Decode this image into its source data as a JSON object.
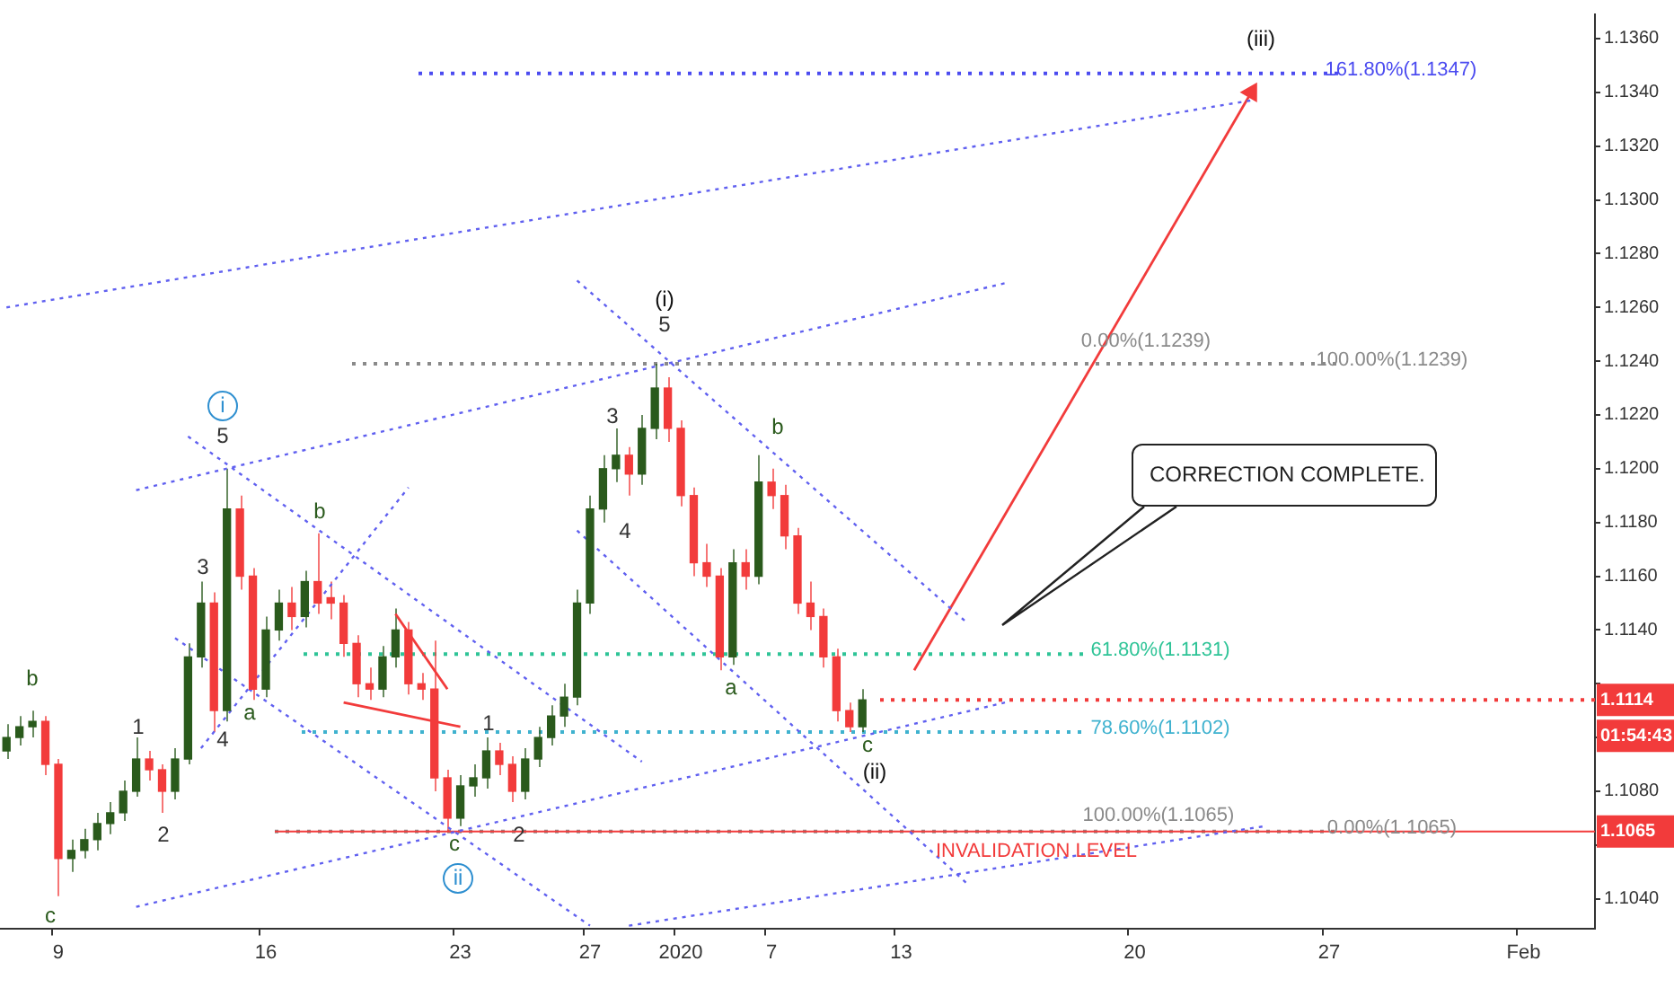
{
  "chart_data": {
    "type": "candlestick",
    "title": "CORRECTION COMPLETE.",
    "categories": [
      null,
      null,
      null,
      null,
      "9",
      null,
      null,
      null,
      null,
      null,
      null,
      null,
      null,
      null,
      null,
      null,
      null,
      null,
      null,
      null,
      "16",
      null,
      null,
      null,
      null,
      null,
      null,
      null,
      null,
      null,
      null,
      null,
      null,
      null,
      null,
      "23",
      null,
      null,
      null,
      null,
      null,
      null,
      null,
      null,
      null,
      "27",
      null,
      null,
      null,
      null,
      null,
      null,
      "2020",
      null,
      null,
      null,
      null,
      null,
      null,
      "7",
      null,
      null,
      null,
      null,
      null,
      null,
      null,
      null,
      null,
      "13",
      null,
      null,
      null,
      null,
      null,
      null,
      null,
      null,
      null,
      null,
      null,
      null,
      null,
      null,
      null,
      null,
      null,
      "20",
      null,
      null,
      null,
      null,
      null,
      null,
      null,
      null,
      null,
      null,
      null,
      null,
      null,
      null,
      "27",
      null,
      null,
      null,
      null,
      null,
      null,
      null,
      null,
      null,
      null,
      null,
      null,
      null,
      null,
      "Feb",
      null,
      null,
      null,
      null,
      null
    ],
    "ohlc": [
      [
        1.1095,
        1.1105,
        1.1092,
        1.11
      ],
      [
        1.11,
        1.1108,
        1.1097,
        1.1104
      ],
      [
        1.1104,
        1.111,
        1.11,
        1.1106
      ],
      [
        1.1106,
        1.1108,
        1.1086,
        1.109
      ],
      [
        1.109,
        1.1092,
        1.1041,
        1.1055
      ],
      [
        1.1055,
        1.1062,
        1.105,
        1.1058
      ],
      [
        1.1058,
        1.1066,
        1.1055,
        1.1062
      ],
      [
        1.1062,
        1.1072,
        1.1058,
        1.1068
      ],
      [
        1.1068,
        1.1076,
        1.1064,
        1.1072
      ],
      [
        1.1072,
        1.1084,
        1.1069,
        1.108
      ],
      [
        1.108,
        1.11,
        1.1078,
        1.1092
      ],
      [
        1.1092,
        1.1095,
        1.1084,
        1.1088
      ],
      [
        1.1088,
        1.109,
        1.1072,
        1.108
      ],
      [
        1.108,
        1.1096,
        1.1077,
        1.1092
      ],
      [
        1.1092,
        1.1135,
        1.109,
        1.113
      ],
      [
        1.113,
        1.1158,
        1.1126,
        1.115
      ],
      [
        1.115,
        1.1154,
        1.1102,
        1.111
      ],
      [
        1.111,
        1.12,
        1.1106,
        1.1185
      ],
      [
        1.1185,
        1.119,
        1.1155,
        1.116
      ],
      [
        1.116,
        1.1163,
        1.1114,
        1.1118
      ],
      [
        1.1118,
        1.1145,
        1.1115,
        1.114
      ],
      [
        1.114,
        1.1155,
        1.1136,
        1.115
      ],
      [
        1.115,
        1.1156,
        1.114,
        1.1145
      ],
      [
        1.1145,
        1.1162,
        1.1141,
        1.1158
      ],
      [
        1.1158,
        1.1176,
        1.1146,
        1.115
      ],
      [
        1.1152,
        1.1158,
        1.1144,
        1.115
      ],
      [
        1.115,
        1.1153,
        1.113,
        1.1135
      ],
      [
        1.1135,
        1.1138,
        1.1115,
        1.112
      ],
      [
        1.112,
        1.1126,
        1.1114,
        1.1118
      ],
      [
        1.1118,
        1.1134,
        1.1115,
        1.113
      ],
      [
        1.113,
        1.1148,
        1.1126,
        1.114
      ],
      [
        1.114,
        1.1143,
        1.1116,
        1.112
      ],
      [
        1.112,
        1.1124,
        1.1114,
        1.1118
      ],
      [
        1.1118,
        1.1136,
        1.108,
        1.1085
      ],
      [
        1.1085,
        1.1088,
        1.1065,
        1.107
      ],
      [
        1.107,
        1.1086,
        1.1067,
        1.1082
      ],
      [
        1.1082,
        1.109,
        1.1078,
        1.1085
      ],
      [
        1.1085,
        1.11,
        1.1081,
        1.1095
      ],
      [
        1.1095,
        1.1098,
        1.1086,
        1.109
      ],
      [
        1.109,
        1.1093,
        1.1076,
        1.108
      ],
      [
        1.108,
        1.1096,
        1.1077,
        1.1092
      ],
      [
        1.1092,
        1.1104,
        1.1089,
        1.11
      ],
      [
        1.11,
        1.1112,
        1.1097,
        1.1108
      ],
      [
        1.1108,
        1.112,
        1.1104,
        1.1115
      ],
      [
        1.1115,
        1.1155,
        1.1112,
        1.115
      ],
      [
        1.115,
        1.119,
        1.1146,
        1.1185
      ],
      [
        1.1185,
        1.1205,
        1.118,
        1.12
      ],
      [
        1.12,
        1.1215,
        1.1195,
        1.1205
      ],
      [
        1.1205,
        1.1208,
        1.119,
        1.1198
      ],
      [
        1.1198,
        1.122,
        1.1194,
        1.1215
      ],
      [
        1.1215,
        1.1239,
        1.1211,
        1.123
      ],
      [
        1.123,
        1.1234,
        1.121,
        1.1215
      ],
      [
        1.1215,
        1.1218,
        1.1186,
        1.119
      ],
      [
        1.119,
        1.1193,
        1.116,
        1.1165
      ],
      [
        1.1165,
        1.1172,
        1.1156,
        1.116
      ],
      [
        1.116,
        1.1163,
        1.1125,
        1.113
      ],
      [
        1.113,
        1.117,
        1.1127,
        1.1165
      ],
      [
        1.1165,
        1.117,
        1.1155,
        1.116
      ],
      [
        1.116,
        1.1205,
        1.1157,
        1.1195
      ],
      [
        1.1195,
        1.12,
        1.1185,
        1.119
      ],
      [
        1.119,
        1.1194,
        1.117,
        1.1175
      ],
      [
        1.1175,
        1.1178,
        1.1146,
        1.115
      ],
      [
        1.115,
        1.1158,
        1.114,
        1.1145
      ],
      [
        1.1145,
        1.1148,
        1.1126,
        1.113
      ],
      [
        1.113,
        1.1133,
        1.1106,
        1.111
      ],
      [
        1.111,
        1.1113,
        1.1102,
        1.1104
      ],
      [
        1.1104,
        1.1118,
        1.1102,
        1.1114
      ],
      null,
      null,
      null,
      null,
      null,
      null,
      null,
      null,
      null,
      null,
      null,
      null,
      null,
      null,
      null,
      null,
      null,
      null,
      null,
      null,
      null,
      null,
      null,
      null,
      null,
      null,
      null,
      null,
      null,
      null,
      null,
      null,
      null,
      null,
      null,
      null,
      null,
      null,
      null,
      null,
      null,
      null,
      null,
      null,
      null,
      null,
      null,
      null,
      null,
      null,
      null,
      null,
      null,
      null,
      null,
      null
    ],
    "colors": [
      "#2a5a1c",
      "#2a5a1c",
      "#2a5a1c",
      "#f23b3b",
      "#f23b3b",
      "#2a5a1c",
      "#2a5a1c",
      "#2a5a1c",
      "#2a5a1c",
      "#2a5a1c",
      "#2a5a1c",
      "#f23b3b",
      "#f23b3b",
      "#2a5a1c",
      "#2a5a1c",
      "#2a5a1c",
      "#f23b3b",
      "#2a5a1c",
      "#f23b3b",
      "#f23b3b",
      "#2a5a1c",
      "#2a5a1c",
      "#f23b3b",
      "#2a5a1c",
      "#f23b3b",
      "#f23b3b",
      "#f23b3b",
      "#f23b3b",
      "#f23b3b",
      "#2a5a1c",
      "#2a5a1c",
      "#f23b3b",
      "#f23b3b",
      "#f23b3b",
      "#f23b3b",
      "#2a5a1c",
      "#2a5a1c",
      "#2a5a1c",
      "#f23b3b",
      "#f23b3b",
      "#2a5a1c",
      "#2a5a1c",
      "#2a5a1c",
      "#2a5a1c",
      "#2a5a1c",
      "#2a5a1c",
      "#2a5a1c",
      "#2a5a1c",
      "#f23b3b",
      "#2a5a1c",
      "#2a5a1c",
      "#f23b3b",
      "#f23b3b",
      "#f23b3b",
      "#f23b3b",
      "#f23b3b",
      "#2a5a1c",
      "#f23b3b",
      "#2a5a1c",
      "#f23b3b",
      "#f23b3b",
      "#f23b3b",
      "#f23b3b",
      "#f23b3b",
      "#f23b3b",
      "#f23b3b",
      "#2a5a1c",
      null,
      null,
      null,
      null,
      null,
      null,
      null,
      null,
      null,
      null,
      null,
      null,
      null,
      null,
      null,
      null,
      null,
      null,
      null,
      null,
      null,
      null,
      null,
      null,
      null,
      null,
      null,
      null,
      null,
      null,
      null,
      null,
      null,
      null,
      null,
      null,
      null,
      null,
      null,
      null,
      null,
      null,
      null,
      null,
      null,
      null,
      null,
      null,
      null,
      null,
      null,
      null,
      null,
      null,
      null,
      null
    ],
    "ylim": [
      1.1029,
      1.1369
    ],
    "yticks": [
      {
        "value": 1.104,
        "label": "1.1040"
      },
      {
        "value": 1.106,
        "label": null
      },
      {
        "value": 1.108,
        "label": "1.1080"
      },
      {
        "value": 1.11,
        "label": null
      },
      {
        "value": 1.112,
        "label": null
      },
      {
        "value": 1.114,
        "label": "1.1140"
      },
      {
        "value": 1.116,
        "label": "1.1160"
      },
      {
        "value": 1.118,
        "label": "1.1180"
      },
      {
        "value": 1.12,
        "label": "1.1200"
      },
      {
        "value": 1.122,
        "label": "1.1220"
      },
      {
        "value": 1.124,
        "label": "1.1240"
      },
      {
        "value": 1.126,
        "label": "1.1260"
      },
      {
        "value": 1.128,
        "label": "1.1280"
      },
      {
        "value": 1.13,
        "label": "1.1300"
      },
      {
        "value": 1.132,
        "label": "1.1320"
      },
      {
        "value": 1.134,
        "label": "1.1340"
      },
      {
        "value": 1.136,
        "label": "1.1360"
      }
    ],
    "grid": false,
    "legend": false,
    "ref_lines": [
      {
        "axis": "y",
        "value": 1.1347,
        "label": "161.80%(1.1347)",
        "color": "#4b4bf0",
        "line_style": "dotted"
      },
      {
        "axis": "y",
        "value": 1.1239,
        "label": "100.00%(1.1239)",
        "color": "#8a8a8a",
        "line_style": "dotted"
      },
      {
        "axis": "y",
        "value": 1.1131,
        "label": "61.80%(1.1131)",
        "color": "#2fc497",
        "line_style": "dotted"
      },
      {
        "axis": "y",
        "value": 1.1102,
        "label": "78.60%(1.1102)",
        "color": "#3fb2cf",
        "line_style": "dotted"
      },
      {
        "axis": "y",
        "value": 1.1065,
        "label": "0.00%(1.1065)",
        "color": "#8a8a8a",
        "line_style": "dotted"
      },
      {
        "axis": "y",
        "value": 1.1065,
        "label": "1.1065",
        "color": "#f23b3b",
        "line_style": "solid"
      },
      {
        "axis": "y",
        "value": 1.1114,
        "label": "1.1114",
        "color": "#f23b3b",
        "line_style": "dotted"
      }
    ],
    "series": [
      {
        "type": "line",
        "color": "#6060f0",
        "line_style": "dotted",
        "values": [
          1.126,
          null,
          null,
          null,
          null,
          null,
          null,
          null,
          null,
          null,
          null,
          null,
          null,
          null,
          null,
          null,
          null,
          null,
          null,
          null,
          null,
          null,
          null,
          null,
          null,
          null,
          null,
          null,
          null,
          null,
          null,
          null,
          null,
          null,
          null,
          null,
          null,
          null,
          null,
          null,
          null,
          null,
          null,
          null,
          null,
          null,
          null,
          null,
          null,
          null,
          null,
          null,
          null,
          null,
          null,
          null,
          null,
          null,
          null,
          null,
          null,
          null,
          null,
          null,
          null,
          null,
          null,
          null,
          null,
          null,
          null,
          null,
          null,
          null,
          null,
          null,
          null,
          null,
          null,
          null,
          null,
          null,
          null,
          null,
          null,
          null,
          null,
          null,
          null,
          null,
          null,
          null,
          null,
          null,
          null,
          null,
          1.1337,
          null,
          null,
          null,
          null,
          null,
          null,
          null,
          null,
          null,
          null,
          null,
          null,
          null,
          null,
          null,
          null,
          null,
          null,
          null,
          null,
          null,
          null,
          null,
          null,
          null,
          null
        ]
      },
      {
        "type": "line",
        "color": "#6060f0",
        "line_style": "dotted",
        "values": [
          null,
          null,
          null,
          null,
          null,
          null,
          null,
          null,
          null,
          null,
          1.1192,
          null,
          null,
          null,
          null,
          null,
          null,
          null,
          null,
          null,
          null,
          null,
          null,
          null,
          null,
          null,
          null,
          null,
          null,
          null,
          null,
          null,
          null,
          null,
          null,
          null,
          null,
          null,
          null,
          null,
          null,
          null,
          null,
          null,
          null,
          null,
          null,
          null,
          null,
          null,
          null,
          null,
          null,
          null,
          null,
          null,
          null,
          null,
          null,
          null,
          null,
          null,
          null,
          null,
          null,
          null,
          null,
          null,
          null,
          null,
          null,
          null,
          null,
          null,
          null,
          null,
          null,
          1.1269,
          null,
          null,
          null,
          null,
          null,
          null,
          null,
          null,
          null,
          null,
          null,
          null,
          null,
          null,
          null,
          null,
          null,
          null,
          null,
          null,
          null,
          null,
          null,
          null,
          null,
          null,
          null,
          null,
          null,
          null,
          null,
          null,
          null,
          null,
          null,
          null,
          null,
          null,
          null,
          null,
          null,
          null,
          null,
          null,
          null
        ]
      },
      {
        "type": "line",
        "color": "#6060f0",
        "line_style": "dotted",
        "values": [
          null,
          null,
          null,
          null,
          null,
          null,
          null,
          null,
          null,
          null,
          null,
          null,
          null,
          null,
          1.1212,
          null,
          null,
          null,
          null,
          null,
          null,
          null,
          null,
          null,
          null,
          null,
          null,
          null,
          null,
          null,
          null,
          null,
          null,
          null,
          null,
          null,
          null,
          null,
          null,
          null,
          null,
          null,
          null,
          null,
          null,
          null,
          null,
          null,
          null,
          1.1091,
          null,
          null,
          null,
          null,
          null,
          null,
          null,
          null,
          null,
          null,
          null,
          null,
          null,
          null,
          null,
          null,
          null,
          null,
          null,
          null,
          null,
          null,
          null,
          null,
          null,
          null,
          null,
          null,
          null,
          null,
          null,
          null,
          null,
          null,
          null,
          null,
          null,
          null,
          null,
          null,
          null,
          null,
          null,
          null,
          null,
          null,
          null,
          null,
          null,
          null,
          null,
          null,
          null,
          null,
          null,
          null,
          null,
          null,
          null,
          null,
          null,
          null,
          null,
          null,
          null,
          null,
          null,
          null,
          null,
          null,
          null,
          null,
          null
        ]
      },
      {
        "type": "line",
        "color": "#6060f0",
        "line_style": "dotted",
        "values": [
          null,
          null,
          null,
          null,
          null,
          null,
          null,
          null,
          null,
          null,
          null,
          null,
          null,
          null,
          null,
          1.1096,
          null,
          null,
          null,
          null,
          null,
          null,
          null,
          null,
          null,
          null,
          null,
          null,
          null,
          null,
          null,
          1.1193,
          null,
          null,
          null,
          null,
          null,
          null,
          null,
          null,
          null,
          null,
          null,
          null,
          null,
          null,
          null,
          null,
          null,
          null,
          null,
          null,
          null,
          null,
          null,
          null,
          null,
          null,
          null,
          null,
          null,
          null,
          null,
          null,
          null,
          null,
          null,
          null,
          null,
          null,
          null,
          null,
          null,
          null,
          null,
          null,
          null,
          null,
          null,
          null,
          null,
          null,
          null,
          null,
          null,
          null,
          null,
          null,
          null,
          null,
          null,
          null,
          null,
          null,
          null,
          null,
          null,
          null,
          null,
          null,
          null,
          null,
          null,
          null,
          null,
          null,
          null,
          null,
          null,
          null,
          null,
          null,
          null,
          null,
          null,
          null,
          null,
          null,
          null,
          null,
          null,
          null,
          null
        ]
      },
      {
        "type": "line",
        "color": "#6060f0",
        "line_style": "dotted",
        "values": [
          null,
          null,
          null,
          null,
          null,
          null,
          null,
          null,
          null,
          null,
          1.1037,
          null,
          null,
          null,
          null,
          null,
          null,
          null,
          null,
          null,
          null,
          null,
          null,
          null,
          null,
          null,
          null,
          null,
          null,
          null,
          null,
          null,
          null,
          null,
          null,
          null,
          null,
          null,
          null,
          null,
          null,
          null,
          null,
          null,
          null,
          null,
          null,
          null,
          null,
          null,
          null,
          null,
          null,
          null,
          null,
          null,
          null,
          null,
          null,
          null,
          null,
          null,
          null,
          null,
          null,
          null,
          null,
          null,
          null,
          null,
          null,
          null,
          null,
          null,
          null,
          null,
          null,
          1.1113,
          null,
          null,
          null,
          null,
          null,
          null,
          null,
          null,
          null,
          null,
          null,
          null,
          null,
          null,
          null,
          null,
          null,
          null,
          null,
          null,
          null,
          null,
          null,
          null,
          null,
          null,
          null,
          null,
          null,
          null,
          null,
          null,
          null,
          null,
          null,
          null,
          null,
          null,
          null,
          null,
          null,
          null,
          null,
          null,
          null
        ]
      },
      {
        "type": "line",
        "color": "#6060f0",
        "line_style": "dotted",
        "values": [
          null,
          null,
          null,
          null,
          null,
          null,
          null,
          null,
          null,
          null,
          null,
          null,
          null,
          null,
          null,
          null,
          null,
          null,
          null,
          null,
          null,
          null,
          null,
          null,
          null,
          null,
          null,
          null,
          null,
          null,
          null,
          null,
          null,
          null,
          null,
          null,
          null,
          null,
          null,
          null,
          null,
          null,
          null,
          null,
          null,
          null,
          null,
          null,
          1.103,
          null,
          null,
          null,
          null,
          null,
          null,
          null,
          null,
          null,
          null,
          null,
          null,
          null,
          null,
          null,
          null,
          null,
          null,
          null,
          null,
          null,
          null,
          null,
          null,
          null,
          null,
          null,
          null,
          null,
          null,
          null,
          null,
          null,
          null,
          null,
          null,
          null,
          null,
          null,
          null,
          null,
          null,
          null,
          null,
          null,
          null,
          null,
          null,
          1.1067,
          null,
          null,
          null,
          null,
          null,
          null,
          null,
          null,
          null,
          null,
          null,
          null,
          null,
          null,
          null,
          null,
          null,
          null,
          null,
          null,
          null,
          null,
          null,
          null,
          null
        ]
      },
      {
        "type": "line",
        "color": "#6060f0",
        "line_style": "dotted",
        "values": [
          null,
          null,
          null,
          null,
          null,
          null,
          null,
          null,
          null,
          null,
          null,
          null,
          null,
          null,
          null,
          null,
          null,
          null,
          null,
          null,
          null,
          null,
          null,
          null,
          null,
          null,
          null,
          null,
          null,
          null,
          null,
          null,
          null,
          null,
          null,
          null,
          null,
          null,
          null,
          null,
          null,
          null,
          null,
          null,
          1.127,
          null,
          null,
          null,
          null,
          null,
          null,
          null,
          null,
          null,
          null,
          null,
          null,
          null,
          null,
          null,
          null,
          null,
          null,
          null,
          null,
          null,
          null,
          null,
          null,
          null,
          null,
          null,
          null,
          null,
          1.1143,
          null,
          null,
          null,
          null,
          null,
          null,
          null,
          null,
          null,
          null,
          null,
          null,
          null,
          null,
          null,
          null,
          null,
          null,
          null,
          null,
          null,
          null,
          null,
          null,
          null,
          null,
          null,
          null,
          null,
          null,
          null,
          null,
          null,
          null,
          null,
          null,
          null,
          null,
          null,
          null,
          null,
          null,
          null,
          null,
          null,
          null,
          null,
          null
        ]
      },
      {
        "type": "line",
        "color": "#6060f0",
        "line_style": "dotted",
        "values": [
          null,
          null,
          null,
          null,
          null,
          null,
          null,
          null,
          null,
          null,
          null,
          null,
          null,
          null,
          null,
          null,
          null,
          null,
          null,
          null,
          null,
          null,
          null,
          null,
          null,
          null,
          null,
          null,
          null,
          null,
          null,
          null,
          null,
          null,
          null,
          null,
          null,
          null,
          null,
          null,
          null,
          null,
          null,
          null,
          1.1177,
          null,
          null,
          null,
          null,
          null,
          null,
          null,
          null,
          null,
          null,
          null,
          null,
          null,
          null,
          null,
          null,
          null,
          null,
          null,
          null,
          null,
          null,
          null,
          null,
          null,
          null,
          null,
          null,
          null,
          1.1046,
          null,
          null,
          null,
          null,
          null,
          null,
          null,
          null,
          null,
          null,
          null,
          null,
          null,
          null,
          null,
          null,
          null,
          null,
          null,
          null,
          null,
          null,
          null,
          null,
          null,
          null,
          null,
          null,
          null,
          null,
          null,
          null,
          null,
          null,
          null,
          null,
          null,
          null,
          null,
          null,
          null,
          null,
          null,
          null,
          null,
          null,
          null,
          null
        ]
      },
      {
        "type": "line",
        "color": "#6060f0",
        "line_style": "dotted",
        "values": [
          null,
          null,
          null,
          null,
          null,
          null,
          null,
          null,
          null,
          null,
          null,
          null,
          null,
          1.1137,
          null,
          null,
          null,
          null,
          null,
          null,
          null,
          null,
          null,
          null,
          null,
          null,
          null,
          null,
          null,
          null,
          null,
          null,
          null,
          null,
          null,
          null,
          null,
          null,
          null,
          null,
          null,
          null,
          null,
          null,
          null,
          1.103,
          null,
          null,
          null,
          null,
          null,
          null,
          null,
          null,
          null,
          null,
          null,
          null,
          null,
          null,
          null,
          null,
          null,
          null,
          null,
          null,
          null,
          null,
          null,
          null,
          null,
          null,
          null,
          null,
          null,
          null,
          null,
          null,
          null,
          null,
          null,
          null,
          null,
          null,
          null,
          null,
          null,
          null,
          null,
          null,
          null,
          null,
          null,
          null,
          null,
          null,
          null,
          null,
          null,
          null,
          null,
          null,
          null,
          null,
          null,
          null,
          null,
          null,
          null,
          null,
          null,
          null,
          null,
          null,
          null,
          null,
          null,
          null,
          null,
          null,
          null,
          null,
          null
        ]
      },
      {
        "type": "line",
        "color": "#f23b3b",
        "line_style": "solid",
        "values": [
          null,
          null,
          null,
          null,
          null,
          null,
          null,
          null,
          null,
          null,
          null,
          null,
          null,
          null,
          null,
          null,
          null,
          null,
          null,
          null,
          null,
          null,
          null,
          null,
          null,
          null,
          1.1113,
          null,
          null,
          null,
          null,
          null,
          null,
          null,
          null,
          1.1104,
          null,
          null,
          null,
          null,
          null,
          null,
          null,
          null,
          null,
          null,
          null,
          null,
          null,
          null,
          null,
          null,
          null,
          null,
          null,
          null,
          null,
          null,
          null,
          null,
          null,
          null,
          null,
          null,
          null,
          null,
          null,
          null,
          null,
          null,
          null,
          null,
          null,
          null,
          null,
          null,
          null,
          null,
          null,
          null,
          null,
          null,
          null,
          null,
          null,
          null,
          null,
          null,
          null,
          null,
          null,
          null,
          null,
          null,
          null,
          null,
          null,
          null,
          null,
          null,
          null,
          null,
          null,
          null,
          null,
          null,
          null,
          null,
          null,
          null,
          null,
          null,
          null,
          null,
          null,
          null,
          null,
          null,
          null,
          null,
          null,
          null,
          null
        ]
      },
      {
        "type": "line",
        "color": "#f23b3b",
        "line_style": "solid",
        "values": [
          null,
          null,
          null,
          null,
          null,
          null,
          null,
          null,
          null,
          null,
          null,
          null,
          null,
          null,
          null,
          null,
          null,
          null,
          null,
          null,
          null,
          null,
          null,
          null,
          null,
          null,
          null,
          null,
          null,
          null,
          1.1146,
          null,
          null,
          null,
          1.1118,
          null,
          null,
          null,
          null,
          null,
          null,
          null,
          null,
          null,
          null,
          null,
          null,
          null,
          null,
          null,
          null,
          null,
          null,
          null,
          null,
          null,
          null,
          null,
          null,
          null,
          null,
          null,
          null,
          null,
          null,
          null,
          null,
          null,
          null,
          null,
          null,
          null,
          null,
          null,
          null,
          null,
          null,
          null,
          null,
          null,
          null,
          null,
          null,
          null,
          null,
          null,
          null,
          null,
          null,
          null,
          null,
          null,
          null,
          null,
          null,
          null,
          null,
          null,
          null,
          null,
          null,
          null,
          null,
          null,
          null,
          null,
          null,
          null,
          null,
          null,
          null,
          null,
          null,
          null,
          null,
          null,
          null,
          null,
          null,
          null,
          null,
          null,
          null
        ]
      },
      {
        "type": "line",
        "color": "#f23b3b",
        "line_style": "solid",
        "marker": "triangle",
        "values": [
          null,
          null,
          null,
          null,
          null,
          null,
          null,
          null,
          null,
          null,
          null,
          null,
          null,
          null,
          null,
          null,
          null,
          null,
          null,
          null,
          null,
          null,
          null,
          null,
          null,
          null,
          null,
          null,
          null,
          null,
          null,
          null,
          null,
          null,
          null,
          null,
          null,
          null,
          null,
          null,
          null,
          null,
          null,
          null,
          null,
          null,
          null,
          null,
          null,
          null,
          null,
          null,
          null,
          null,
          null,
          null,
          null,
          null,
          null,
          null,
          null,
          null,
          null,
          null,
          null,
          null,
          null,
          null,
          null,
          null,
          1.1125,
          null,
          null,
          null,
          null,
          null,
          null,
          null,
          null,
          null,
          null,
          null,
          null,
          null,
          null,
          null,
          null,
          null,
          null,
          null,
          null,
          null,
          null,
          null,
          null,
          null,
          1.134,
          null,
          null,
          null,
          null,
          null,
          null,
          null,
          null,
          null,
          null,
          null,
          null,
          null,
          null,
          null,
          null,
          null,
          null,
          null,
          null,
          null,
          null,
          null,
          null,
          null,
          null
        ]
      }
    ],
    "annotations": [
      "b",
      "c",
      "1",
      "2",
      "3",
      "4",
      "5",
      "i",
      "a",
      "b",
      "c",
      "ii",
      "1",
      "2",
      "3",
      "4",
      "5",
      "(i)",
      "a",
      "b",
      "c",
      "(ii)",
      "(iii)",
      "0.00%(1.1239)",
      "100.00%(1.1065)",
      "INVALIDATION LEVEL",
      "01:54:43"
    ]
  }
}
